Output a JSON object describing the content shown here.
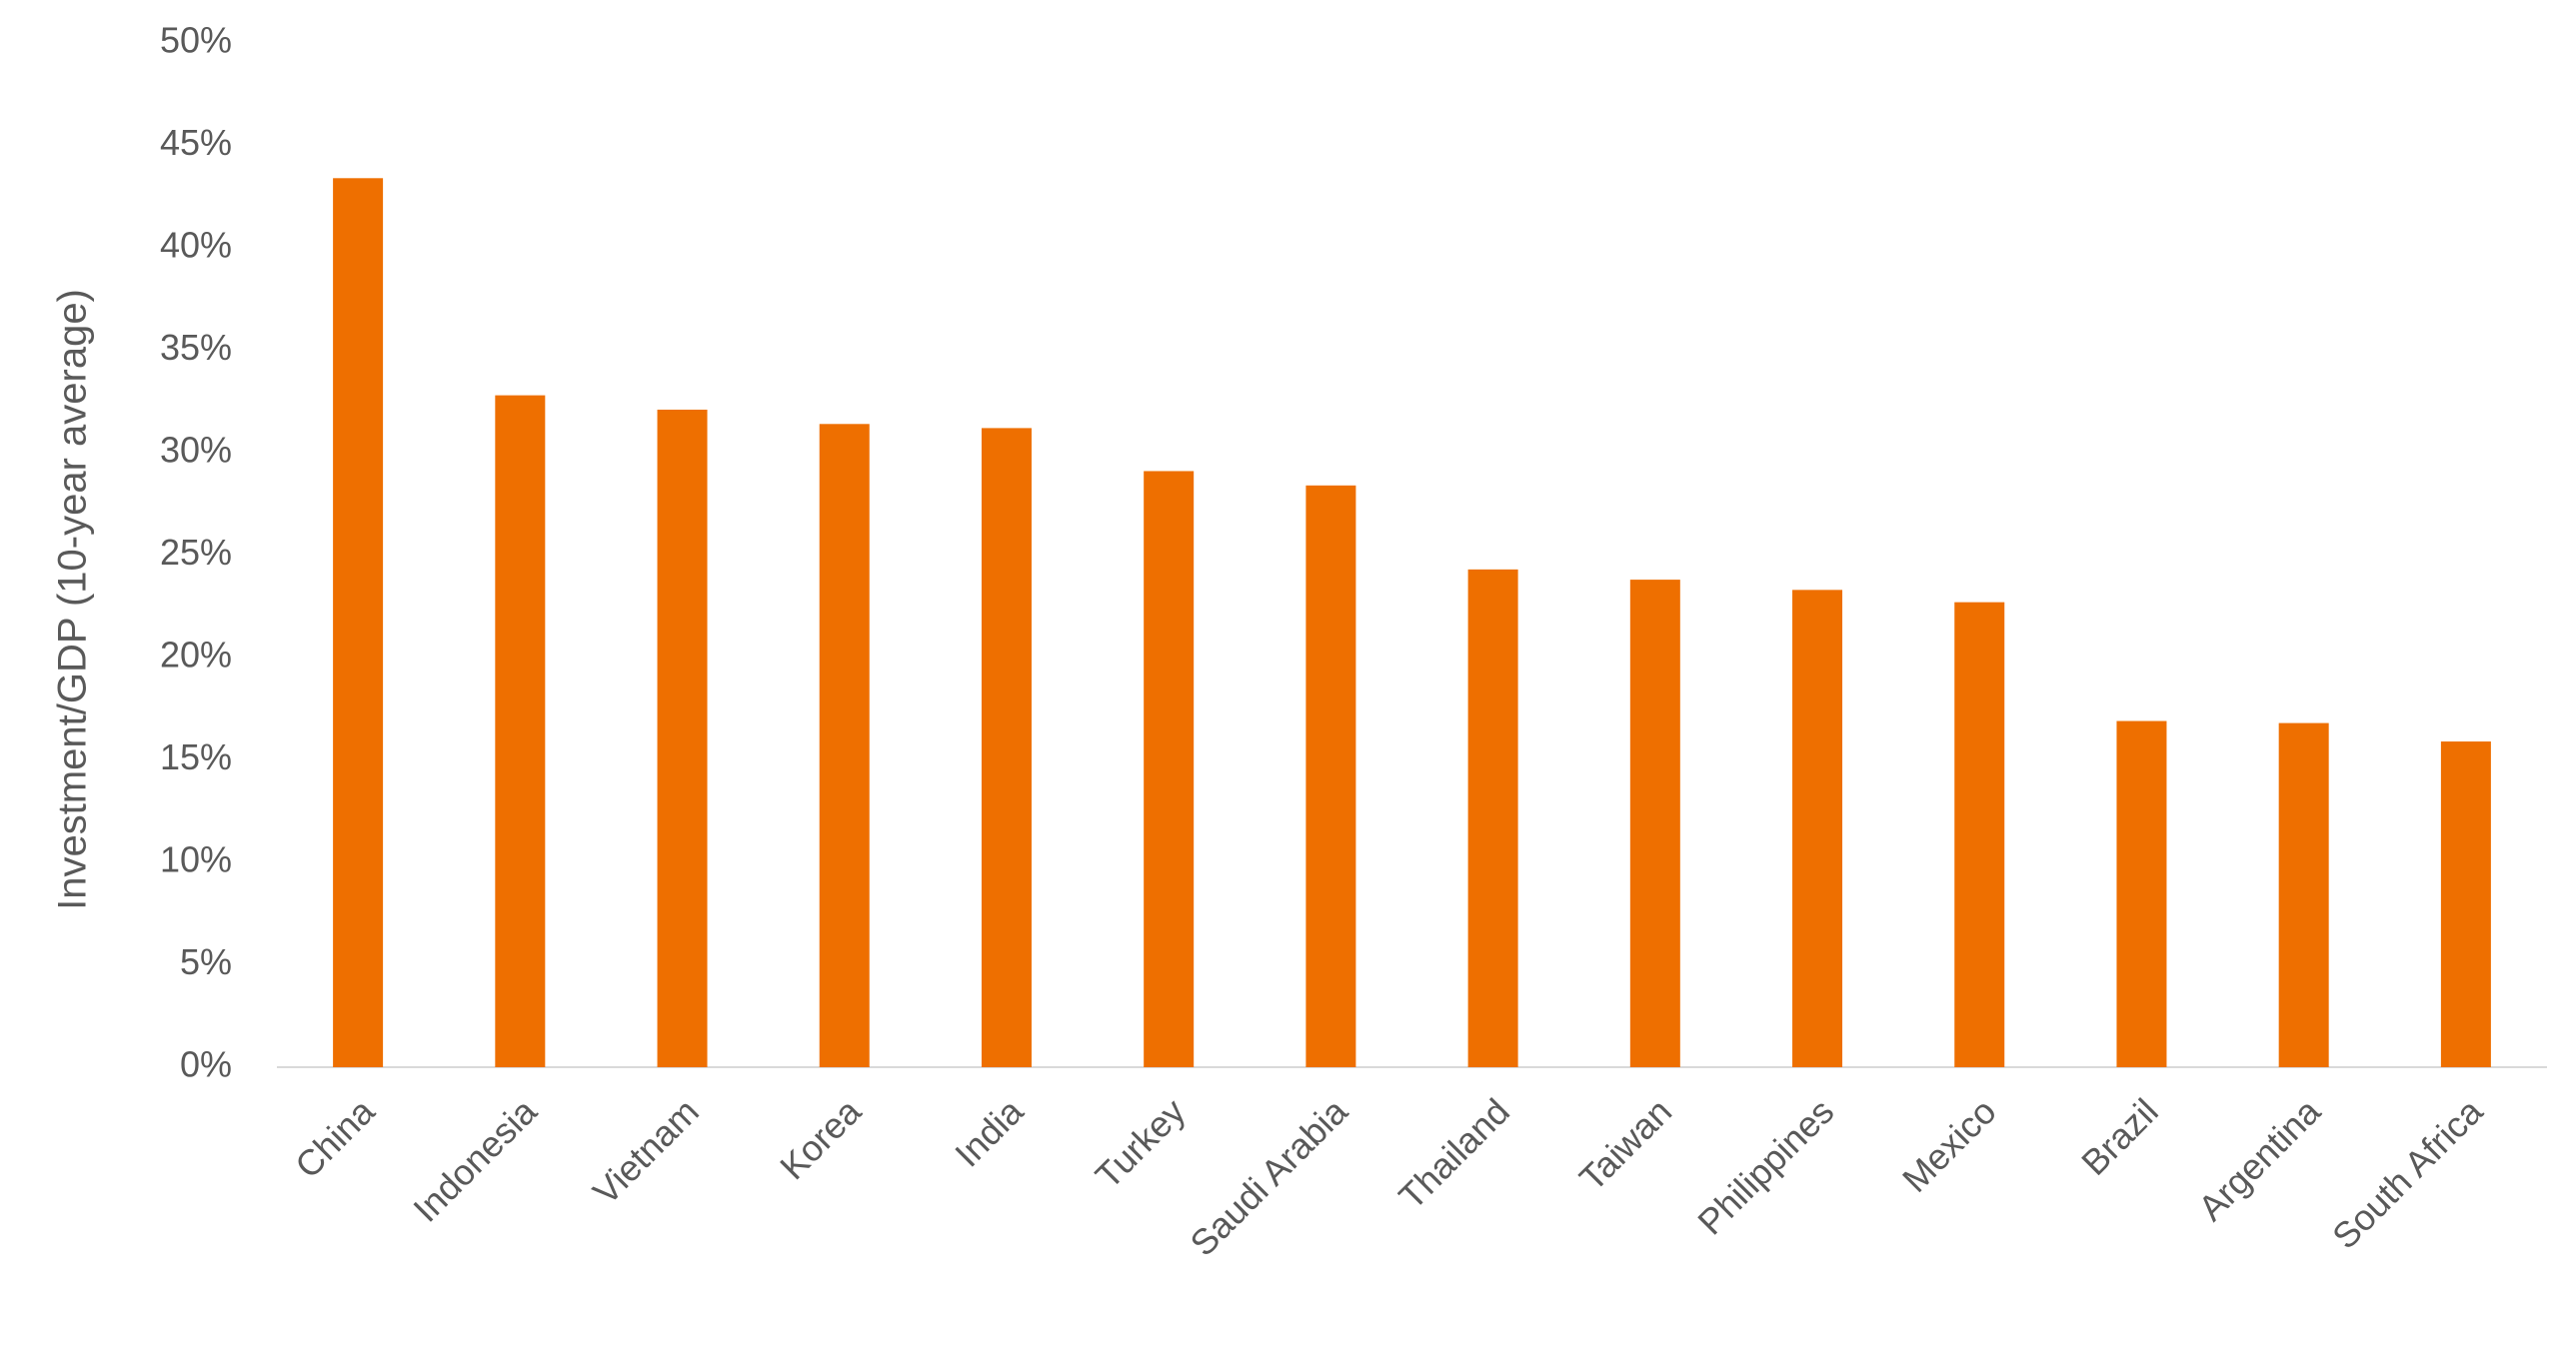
{
  "chart_data": {
    "type": "bar",
    "y_axis_label": "Investment/GDP (10-year average)",
    "categories": [
      "China",
      "Indonesia",
      "Vietnam",
      "Korea",
      "India",
      "Turkey",
      "Saudi Arabia",
      "Thailand",
      "Taiwan",
      "Philippines",
      "Mexico",
      "Brazil",
      "Argentina",
      "South Africa"
    ],
    "values": [
      43.4,
      32.8,
      32.1,
      31.4,
      31.2,
      29.1,
      28.4,
      24.3,
      23.8,
      23.3,
      22.7,
      16.9,
      16.8,
      15.9
    ],
    "color": "#ee6f00",
    "ylim": [
      0,
      50
    ],
    "yticks": [
      {
        "value": 0,
        "label": "0%"
      },
      {
        "value": 5,
        "label": "5%"
      },
      {
        "value": 10,
        "label": "10%"
      },
      {
        "value": 15,
        "label": "15%"
      },
      {
        "value": 20,
        "label": "20%"
      },
      {
        "value": 25,
        "label": "25%"
      },
      {
        "value": 30,
        "label": "30%"
      },
      {
        "value": 35,
        "label": "35%"
      },
      {
        "value": 40,
        "label": "40%"
      },
      {
        "value": 45,
        "label": "45%"
      },
      {
        "value": 50,
        "label": "50%"
      }
    ],
    "grid": false
  }
}
